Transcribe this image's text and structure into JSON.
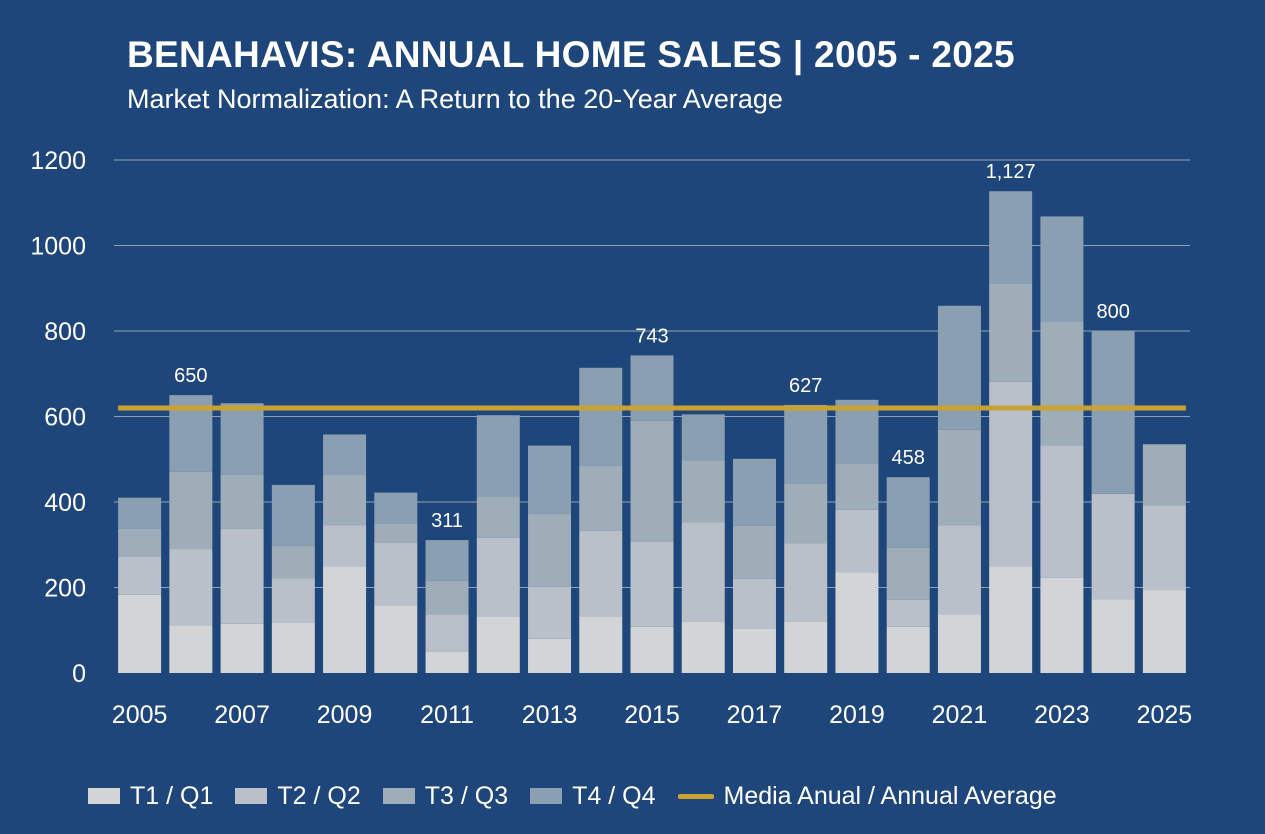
{
  "title": "BENAHAVIS: ANNUAL HOME SALES | 2005 - 2025",
  "subtitle": "Market Normalization: A Return to the 20-Year Average",
  "colors": {
    "background": "#1f467a",
    "q1": "#d3d4d6",
    "q2": "#b9c0c9",
    "q3": "#9fadb8",
    "q4": "#8a9fb1",
    "average": "#c9a233",
    "grid": "#8fa1b8",
    "text": "#ffffff"
  },
  "chart_data": {
    "type": "bar",
    "stacked": true,
    "categories": [
      "2005",
      "2006",
      "2007",
      "2008",
      "2009",
      "2010",
      "2011",
      "2012",
      "2013",
      "2014",
      "2015",
      "2016",
      "2017",
      "2018",
      "2019",
      "2020",
      "2021",
      "2022",
      "2023",
      "2024",
      "2025"
    ],
    "x_tick_labels": [
      "2005",
      "",
      "2007",
      "",
      "2009",
      "",
      "2011",
      "",
      "2013",
      "",
      "2015",
      "",
      "2017",
      "",
      "2019",
      "",
      "2021",
      "",
      "2023",
      "",
      "2025"
    ],
    "series": [
      {
        "name": "T1 / Q1",
        "values": [
          183,
          112,
          115,
          117,
          250,
          158,
          50,
          131,
          80,
          133,
          108,
          121,
          103,
          121,
          235,
          108,
          137,
          250,
          223,
          172,
          194
        ]
      },
      {
        "name": "T2 / Q2",
        "values": [
          90,
          178,
          222,
          104,
          96,
          147,
          87,
          185,
          122,
          200,
          200,
          231,
          117,
          182,
          147,
          63,
          208,
          431,
          310,
          247,
          198
        ]
      },
      {
        "name": "T3 / Q3",
        "values": [
          64,
          181,
          127,
          77,
          119,
          45,
          79,
          97,
          170,
          153,
          282,
          145,
          124,
          140,
          108,
          122,
          224,
          230,
          290,
          0,
          143
        ]
      },
      {
        "name": "T4 / Q4",
        "values": [
          73,
          179,
          167,
          142,
          93,
          72,
          95,
          190,
          160,
          228,
          153,
          108,
          157,
          184,
          149,
          165,
          290,
          216,
          245,
          381,
          0
        ]
      }
    ],
    "average": {
      "name": "Media Anual / Annual Average",
      "value": 620
    },
    "data_labels": [
      {
        "index": 1,
        "text": "650"
      },
      {
        "index": 6,
        "text": "311"
      },
      {
        "index": 10,
        "text": "743"
      },
      {
        "index": 13,
        "text": "627"
      },
      {
        "index": 15,
        "text": "458"
      },
      {
        "index": 17,
        "text": "1,127"
      },
      {
        "index": 19,
        "text": "800"
      }
    ],
    "y_ticks": [
      "0",
      "200",
      "400",
      "600",
      "800",
      "1000",
      "1200"
    ],
    "ylim": [
      0,
      1200
    ],
    "grid": true,
    "legend_position": "bottom"
  },
  "legend": [
    {
      "label": "T1 / Q1"
    },
    {
      "label": "T2 / Q2"
    },
    {
      "label": "T3 / Q3"
    },
    {
      "label": "T4 / Q4"
    },
    {
      "label": "Media Anual / Annual Average"
    }
  ]
}
